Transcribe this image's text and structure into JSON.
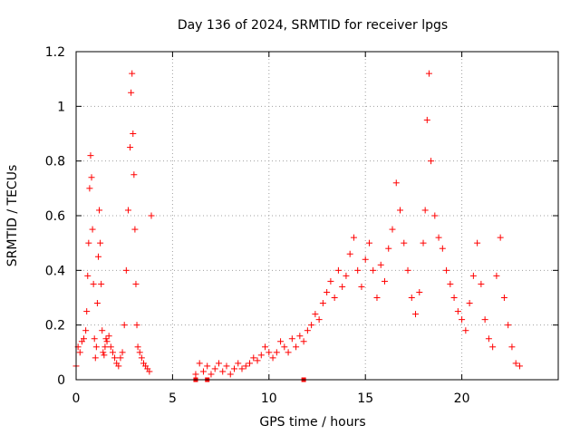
{
  "chart_data": {
    "type": "scatter",
    "title": "Day 136 of 2024, SRMTID for receiver lpgs",
    "xlabel": "GPS time / hours",
    "ylabel": "SRMTID / TECUs",
    "xlim": [
      0,
      25
    ],
    "ylim": [
      0,
      1.2
    ],
    "xticks": [
      0,
      5,
      10,
      15,
      20
    ],
    "xtick_labels": [
      "0",
      "5",
      "10",
      "15",
      "20"
    ],
    "yticks": [
      0,
      0.2,
      0.4,
      0.6,
      0.8,
      1.0,
      1.2
    ],
    "ytick_labels": [
      "0",
      "0.2",
      "0.4",
      "0.6",
      "0.8",
      "1",
      "1.2"
    ],
    "grid": true,
    "marker": "+",
    "color": "#ff0000",
    "series": [
      {
        "name": "SRMTID",
        "x": [
          0.0,
          0.1,
          0.2,
          0.3,
          0.4,
          0.5,
          0.55,
          0.6,
          0.65,
          0.7,
          0.75,
          0.8,
          0.85,
          0.9,
          0.95,
          1.0,
          1.05,
          1.1,
          1.15,
          1.2,
          1.25,
          1.3,
          1.35,
          1.4,
          1.45,
          1.5,
          1.55,
          1.6,
          1.7,
          1.8,
          1.9,
          2.0,
          2.1,
          2.2,
          2.3,
          2.4,
          2.5,
          2.6,
          2.7,
          2.8,
          2.85,
          2.9,
          2.95,
          3.0,
          3.05,
          3.1,
          3.15,
          3.2,
          3.3,
          3.4,
          3.5,
          3.6,
          3.7,
          3.8,
          3.9,
          6.2,
          6.4,
          6.6,
          6.8,
          7.0,
          7.2,
          7.4,
          7.6,
          7.8,
          8.0,
          8.2,
          8.4,
          8.6,
          8.8,
          9.0,
          9.2,
          9.4,
          9.6,
          9.8,
          10.0,
          10.2,
          10.4,
          10.6,
          10.8,
          11.0,
          11.2,
          11.4,
          11.6,
          11.8,
          12.0,
          12.2,
          12.4,
          12.6,
          12.8,
          13.0,
          13.2,
          13.4,
          13.6,
          13.8,
          14.0,
          14.2,
          14.4,
          14.6,
          14.8,
          15.0,
          15.2,
          15.4,
          15.6,
          15.8,
          16.0,
          16.2,
          16.4,
          16.6,
          16.8,
          17.0,
          17.2,
          17.4,
          17.6,
          17.8,
          18.0,
          18.1,
          18.2,
          18.3,
          18.4,
          18.6,
          18.8,
          19.0,
          19.2,
          19.4,
          19.6,
          19.8,
          20.0,
          20.2,
          20.4,
          20.6,
          20.8,
          21.0,
          21.2,
          21.4,
          21.6,
          21.8,
          22.0,
          22.2,
          22.4,
          22.6,
          22.8,
          23.0
        ],
        "y": [
          0.05,
          0.12,
          0.1,
          0.14,
          0.15,
          0.18,
          0.25,
          0.38,
          0.5,
          0.7,
          0.82,
          0.74,
          0.55,
          0.35,
          0.15,
          0.08,
          0.12,
          0.28,
          0.45,
          0.62,
          0.5,
          0.35,
          0.18,
          0.1,
          0.09,
          0.12,
          0.15,
          0.14,
          0.16,
          0.12,
          0.1,
          0.08,
          0.06,
          0.05,
          0.08,
          0.1,
          0.2,
          0.4,
          0.62,
          0.85,
          1.05,
          1.12,
          0.9,
          0.75,
          0.55,
          0.35,
          0.2,
          0.12,
          0.1,
          0.08,
          0.06,
          0.05,
          0.04,
          0.03,
          0.6,
          0.02,
          0.06,
          0.03,
          0.05,
          0.02,
          0.04,
          0.06,
          0.03,
          0.05,
          0.02,
          0.04,
          0.06,
          0.04,
          0.05,
          0.06,
          0.08,
          0.07,
          0.09,
          0.12,
          0.1,
          0.08,
          0.1,
          0.14,
          0.12,
          0.1,
          0.15,
          0.12,
          0.16,
          0.14,
          0.18,
          0.2,
          0.24,
          0.22,
          0.28,
          0.32,
          0.36,
          0.3,
          0.4,
          0.34,
          0.38,
          0.46,
          0.52,
          0.4,
          0.34,
          0.44,
          0.5,
          0.4,
          0.3,
          0.42,
          0.36,
          0.48,
          0.55,
          0.72,
          0.62,
          0.5,
          0.4,
          0.3,
          0.24,
          0.32,
          0.5,
          0.62,
          0.95,
          1.12,
          0.8,
          0.6,
          0.52,
          0.48,
          0.4,
          0.35,
          0.3,
          0.25,
          0.22,
          0.18,
          0.28,
          0.38,
          0.5,
          0.35,
          0.22,
          0.15,
          0.12,
          0.38,
          0.52,
          0.3,
          0.2,
          0.12,
          0.06,
          0.05
        ],
        "zero_markers_x": [
          6.2,
          6.8,
          11.8
        ]
      }
    ]
  }
}
